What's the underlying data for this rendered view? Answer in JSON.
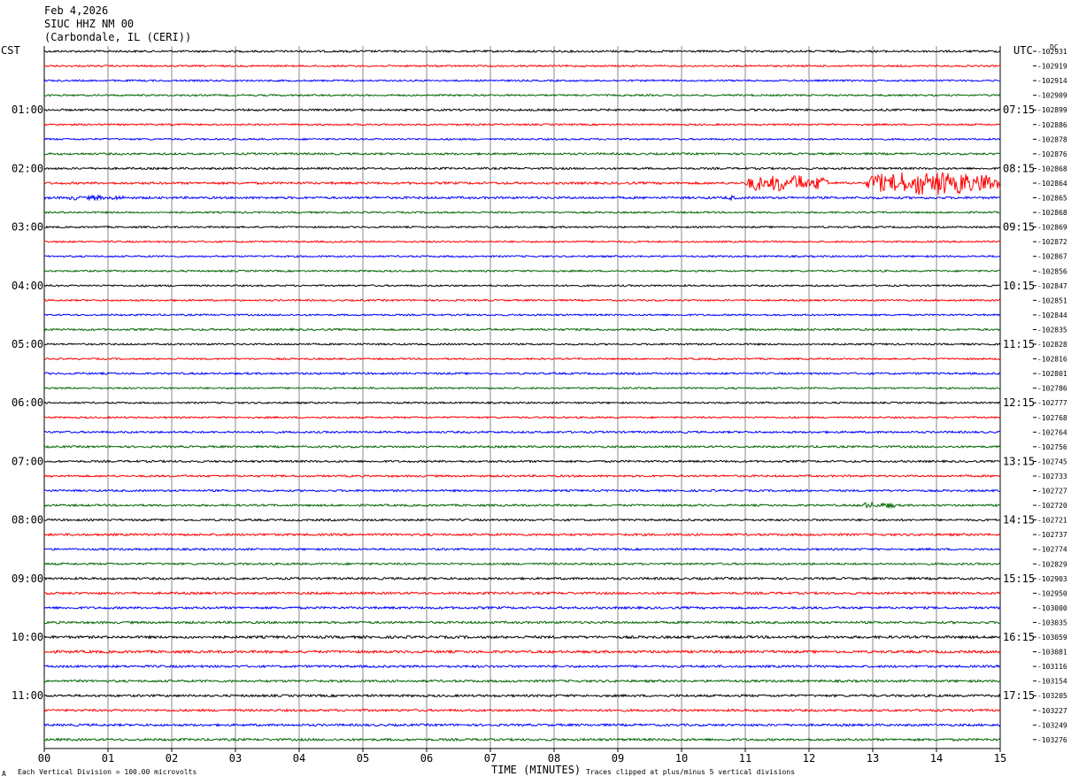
{
  "header": {
    "date": "Feb 4,2026",
    "station": "SIUC HHZ NM 00",
    "location": "(Carbondale, IL (CERI))"
  },
  "left_tz": "CST",
  "right_tz": "UTC",
  "dc_label": "DC",
  "footer": {
    "scale_note": "Each Vertical Division =  100.00 microvolts",
    "x_axis_label": "TIME (MINUTES)",
    "clip_note": "Traces clipped at plus/minus 5 vertical divisions",
    "corner_mark": "A"
  },
  "colors": {
    "trace_cycle": [
      "#000000",
      "#ff0000",
      "#0000ff",
      "#006600"
    ],
    "grid": "#888888",
    "background": "#ffffff"
  },
  "chart_data": {
    "type": "line",
    "title": "SIUC HHZ NM 00",
    "xlabel": "TIME (MINUTES)",
    "xlim": [
      0,
      15
    ],
    "x_ticks": [
      "00",
      "01",
      "02",
      "03",
      "04",
      "05",
      "06",
      "07",
      "08",
      "09",
      "10",
      "11",
      "12",
      "13",
      "14",
      "15"
    ],
    "left_hour_labels": [
      "01:00",
      "02:00",
      "03:00",
      "04:00",
      "05:00",
      "06:00",
      "07:00",
      "08:00",
      "09:00",
      "10:00",
      "11:00"
    ],
    "right_hour_labels": [
      "07:15",
      "08:15",
      "09:15",
      "10:15",
      "11:15",
      "12:15",
      "13:15",
      "14:15",
      "15:15",
      "16:15",
      "17:15"
    ],
    "trace_offsets": [
      "-102931",
      "-102919",
      "-102914",
      "-102909",
      "-102899",
      "-102886",
      "-102878",
      "-102876",
      "-102868",
      "-102864",
      "-102865",
      "-102868",
      "-102869",
      "-102872",
      "-102867",
      "-102856",
      "-102847",
      "-102851",
      "-102844",
      "-102835",
      "-102828",
      "-102816",
      "-102801",
      "-102786",
      "-102777",
      "-102768",
      "-102764",
      "-102756",
      "-102745",
      "-102733",
      "-102727",
      "-102720",
      "-102721",
      "-102737",
      "-102774",
      "-102829",
      "-102903",
      "-102950",
      "-103000",
      "-103035",
      "-103059",
      "-103081",
      "-103116",
      "-103154",
      "-103205",
      "-103227",
      "-103249",
      "-103276"
    ],
    "trace_amplitude_divisions": [
      0.35,
      0.3,
      0.3,
      0.3,
      0.35,
      0.3,
      0.3,
      0.35,
      0.35,
      0.4,
      0.4,
      0.3,
      0.3,
      0.3,
      0.3,
      0.3,
      0.3,
      0.3,
      0.3,
      0.35,
      0.3,
      0.3,
      0.35,
      0.3,
      0.3,
      0.3,
      0.35,
      0.35,
      0.35,
      0.35,
      0.35,
      0.35,
      0.35,
      0.4,
      0.35,
      0.35,
      0.4,
      0.4,
      0.4,
      0.4,
      0.45,
      0.45,
      0.4,
      0.4,
      0.4,
      0.4,
      0.4,
      0.4
    ],
    "events": [
      {
        "trace": 9,
        "start_min": 11.0,
        "end_min": 12.3,
        "amplitude_divisions": 3.5
      },
      {
        "trace": 9,
        "start_min": 12.9,
        "end_min": 15.0,
        "amplitude_divisions": 5.0
      },
      {
        "trace": 10,
        "start_min": 0.3,
        "end_min": 1.3,
        "amplitude_divisions": 1.0
      },
      {
        "trace": 10,
        "start_min": 10.6,
        "end_min": 11.0,
        "amplitude_divisions": 0.8
      },
      {
        "trace": 31,
        "start_min": 12.75,
        "end_min": 13.4,
        "amplitude_divisions": 1.2
      }
    ],
    "grid": true
  }
}
